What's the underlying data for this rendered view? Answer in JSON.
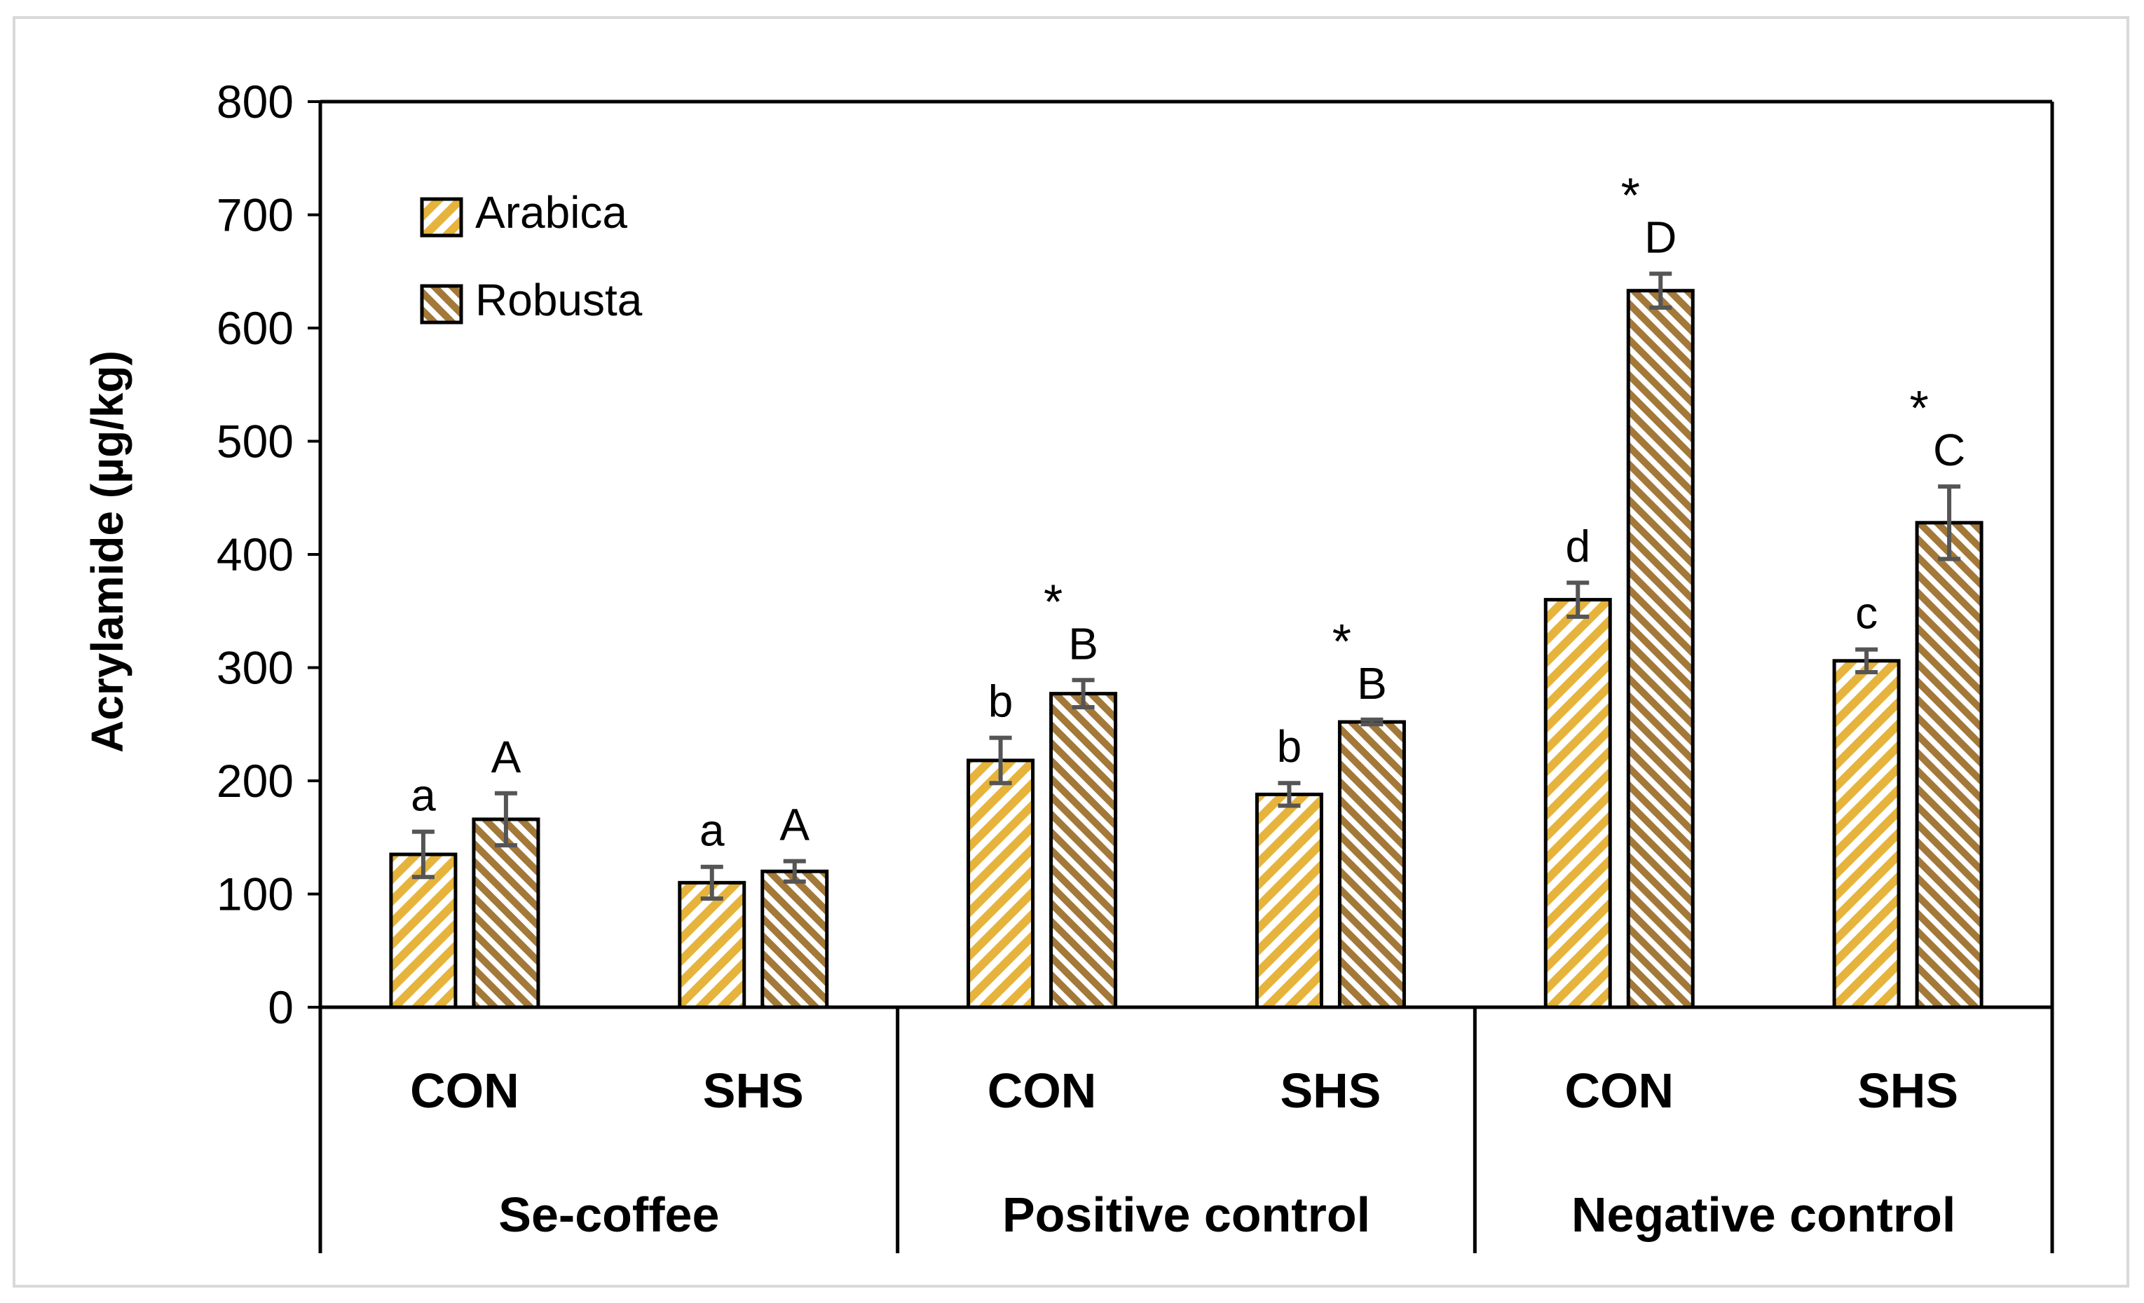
{
  "chart_data": {
    "type": "bar",
    "ylabel": "Acrylamide (µg/kg)",
    "xlabel": "",
    "ylim": [
      0,
      800
    ],
    "yticks": [
      "0",
      "100",
      "200",
      "300",
      "400",
      "500",
      "600",
      "700",
      "800"
    ],
    "legend_position": "top-left",
    "categories": [
      {
        "group": "Se-coffee",
        "sub": "CON"
      },
      {
        "group": "Se-coffee",
        "sub": "SHS"
      },
      {
        "group": "Positive control",
        "sub": "CON"
      },
      {
        "group": "Positive control",
        "sub": "SHS"
      },
      {
        "group": "Negative control",
        "sub": "CON"
      },
      {
        "group": "Negative control",
        "sub": "SHS"
      }
    ],
    "groups": [
      "Se-coffee",
      "Positive control",
      "Negative control"
    ],
    "series": [
      {
        "name": "Arabica",
        "color": "#e6b43c",
        "values": [
          135,
          110,
          218,
          188,
          360,
          306
        ],
        "errors": [
          20,
          14,
          20,
          10,
          15,
          10
        ],
        "letters": [
          "a",
          "a",
          "b",
          "b",
          "d",
          "c"
        ]
      },
      {
        "name": "Robusta",
        "color": "#a3793a",
        "values": [
          166,
          120,
          277,
          252,
          633,
          428
        ],
        "errors": [
          23,
          9,
          12,
          2,
          15,
          32
        ],
        "letters": [
          "A",
          "A",
          "B",
          "B",
          "D",
          "C"
        ]
      }
    ],
    "significance": [
      "",
      "",
      "*",
      "*",
      "*",
      "*"
    ]
  }
}
